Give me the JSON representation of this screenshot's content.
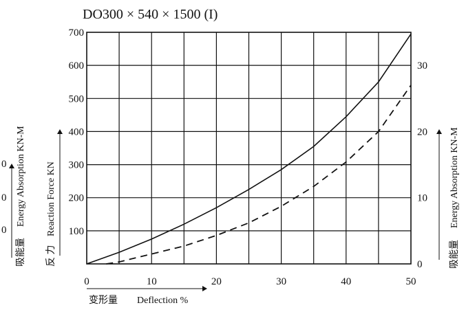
{
  "chart_data": {
    "type": "line",
    "title": "DO300 × 540 × 1500 (I)",
    "x_axis": {
      "label_cn": "变形量",
      "label_en": "Deflection %",
      "ticks": [
        "0",
        "10",
        "20",
        "30",
        "40",
        "50"
      ],
      "range": [
        0,
        50
      ]
    },
    "y_left": {
      "label_cn": "反 力",
      "label_en": "Reaction Force KN",
      "ticks": [
        "100",
        "200",
        "300",
        "400",
        "500",
        "600",
        "700"
      ],
      "range": [
        0,
        700
      ]
    },
    "y_left_outer": {
      "label_cn": "吸能量",
      "label_en": "Energy Absorption KN-M",
      "ticks": [
        "0",
        "0",
        "0"
      ]
    },
    "y_right": {
      "label_cn": "吸能量",
      "label_en": "Energy Absorption KN-M",
      "ticks": [
        "0",
        "10",
        "20",
        "30"
      ],
      "range": [
        0,
        35
      ]
    },
    "grid": true,
    "series": [
      {
        "axis": "left",
        "style": "solid",
        "points": [
          [
            0,
            0
          ],
          [
            5,
            35
          ],
          [
            10,
            75
          ],
          [
            15,
            120
          ],
          [
            20,
            170
          ],
          [
            25,
            225
          ],
          [
            30,
            285
          ],
          [
            35,
            355
          ],
          [
            40,
            445
          ],
          [
            45,
            550
          ],
          [
            50,
            695
          ]
        ]
      },
      {
        "axis": "right",
        "style": "dashed",
        "points": [
          [
            3,
            0
          ],
          [
            5,
            0.3
          ],
          [
            10,
            1.5
          ],
          [
            15,
            2.7
          ],
          [
            20,
            4.3
          ],
          [
            25,
            6.2
          ],
          [
            30,
            8.7
          ],
          [
            35,
            11.7
          ],
          [
            40,
            15.4
          ],
          [
            45,
            20.0
          ],
          [
            50,
            27.0
          ]
        ]
      }
    ]
  }
}
